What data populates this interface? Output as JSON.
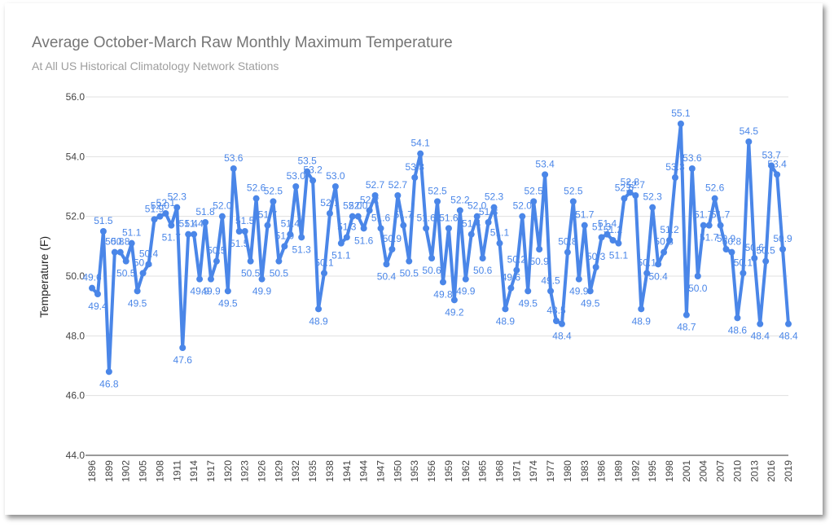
{
  "chart_data": {
    "type": "line",
    "title": "Average October-March Raw Monthly Maximum Temperature",
    "subtitle": "At All US Historical Climatology Network Stations",
    "ylabel": "Temperature (F)",
    "xlabel": "",
    "ylim": [
      44,
      56
    ],
    "yticks": [
      "44.0",
      "46.0",
      "48.0",
      "50.0",
      "52.0",
      "54.0",
      "56.0"
    ],
    "xticks": [
      "1896",
      "1899",
      "1902",
      "1905",
      "1908",
      "1911",
      "1914",
      "1917",
      "1920",
      "1923",
      "1926",
      "1929",
      "1932",
      "1935",
      "1938",
      "1941",
      "1944",
      "1947",
      "1950",
      "1953",
      "1956",
      "1959",
      "1962",
      "1965",
      "1968",
      "1971",
      "1974",
      "1977",
      "1980",
      "1983",
      "1986",
      "1989",
      "1992",
      "1995",
      "1998",
      "2001",
      "2004",
      "2007",
      "2010",
      "2013",
      "2016",
      "2019"
    ],
    "grid": true,
    "legend": "none",
    "color": "#4a86e8",
    "x_start": 1896,
    "x_end": 2019,
    "values": [
      49.6,
      49.4,
      51.5,
      46.8,
      50.8,
      50.8,
      50.5,
      51.1,
      49.5,
      50.1,
      50.4,
      51.9,
      52.0,
      52.1,
      51.7,
      52.3,
      47.6,
      51.4,
      51.4,
      49.9,
      51.8,
      49.9,
      50.5,
      52.0,
      49.5,
      53.6,
      51.5,
      51.5,
      50.5,
      52.6,
      49.9,
      51.7,
      52.5,
      50.5,
      51.0,
      51.4,
      53.0,
      51.3,
      53.5,
      53.2,
      48.9,
      50.1,
      52.1,
      53.0,
      51.1,
      51.3,
      52.0,
      52.0,
      51.6,
      52.2,
      52.7,
      51.6,
      50.4,
      50.9,
      52.7,
      51.7,
      50.5,
      53.3,
      54.1,
      51.6,
      50.6,
      52.5,
      49.8,
      51.6,
      49.2,
      52.2,
      49.9,
      51.4,
      52.0,
      50.6,
      51.8,
      52.3,
      51.1,
      48.9,
      49.6,
      50.2,
      52.0,
      49.5,
      52.5,
      50.9,
      53.4,
      49.5,
      48.5,
      48.4,
      50.8,
      52.5,
      49.9,
      51.7,
      49.5,
      50.3,
      51.3,
      51.4,
      51.2,
      51.1,
      52.6,
      52.8,
      52.7,
      48.9,
      50.1,
      52.3,
      50.4,
      50.8,
      51.2,
      53.3,
      55.1,
      48.7,
      53.6,
      50.0,
      51.7,
      51.7,
      52.6,
      51.7,
      50.9,
      50.8,
      48.6,
      50.1,
      54.5,
      50.6,
      48.4,
      50.5,
      53.7,
      53.4,
      50.9,
      48.4
    ]
  }
}
